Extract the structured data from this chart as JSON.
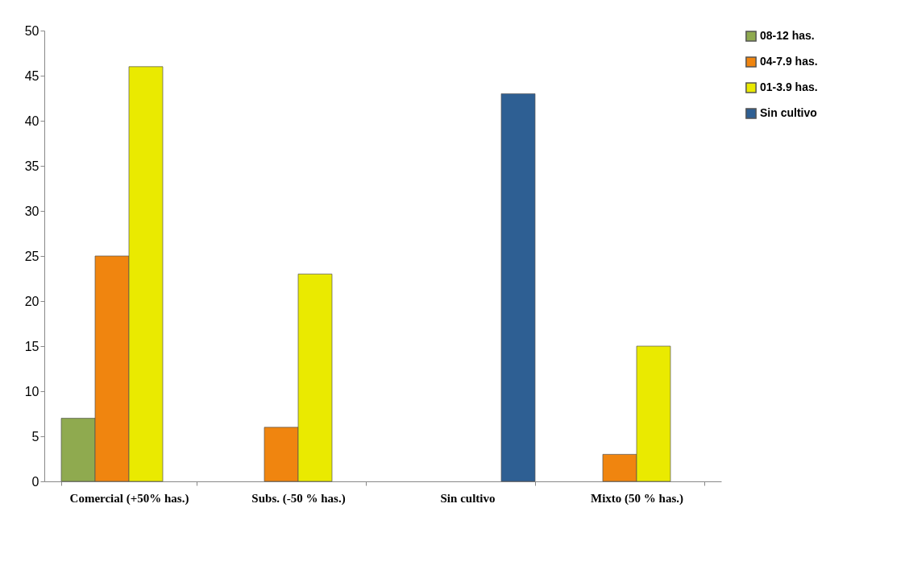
{
  "chart_data": {
    "type": "bar",
    "categories": [
      "Comercial (+50% has.)",
      "Subs. (-50 % has.)",
      "Sin cultivo",
      "Mixto (50 % has.)"
    ],
    "series": [
      {
        "name": "08-12 has.",
        "color": "#8faa4f",
        "values": [
          7,
          null,
          null,
          null
        ]
      },
      {
        "name": "04-7.9 has.",
        "color": "#f0850f",
        "values": [
          25,
          6,
          null,
          3
        ]
      },
      {
        "name": "01-3.9 has.",
        "color": "#eaea00",
        "values": [
          46,
          23,
          null,
          15
        ]
      },
      {
        "name": "Sin cultivo",
        "color": "#2e5f93",
        "values": [
          null,
          null,
          43,
          null
        ]
      }
    ],
    "ylim": [
      0,
      50
    ],
    "yticks": [
      0,
      5,
      10,
      15,
      20,
      25,
      30,
      35,
      40,
      45,
      50
    ],
    "grid": false,
    "legend": "right"
  }
}
